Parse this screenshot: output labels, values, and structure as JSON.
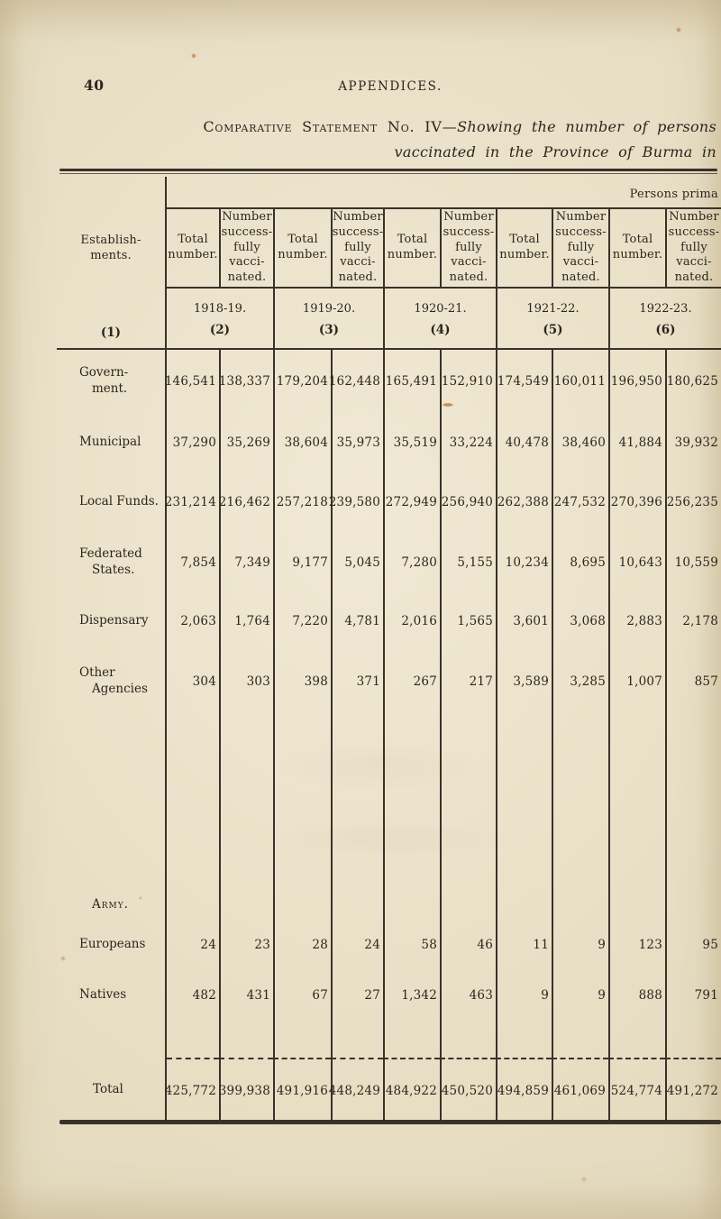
{
  "page": {
    "number": "40",
    "running_header": "APPENDICES.",
    "title": {
      "prefix": "Comparative Statement No. IV",
      "rest_line1": "—Showing the number of persons",
      "line2": "vaccinated in the Province of Burma in"
    }
  },
  "colors": {
    "paper": "#e8dfc5",
    "ink": "#2b261d"
  },
  "table": {
    "continuation_note": "Persons prima",
    "establishments_header": "Establish- ments.",
    "establishments_col_no": "(1)",
    "subheaders": {
      "total": "Total number.",
      "success": "Number success- fully vacci- nated."
    },
    "year_groups": [
      {
        "year": "1918-19.",
        "col_no": "(2)"
      },
      {
        "year": "1919-20.",
        "col_no": "(3)"
      },
      {
        "year": "1920-21.",
        "col_no": "(4)"
      },
      {
        "year": "1921-22.",
        "col_no": "(5)"
      },
      {
        "year": "1922-23.",
        "col_no": "(6)"
      }
    ],
    "establishment_rows": [
      {
        "key": "government",
        "label": "Govern- ment.",
        "values": [
          "146,541",
          "138,337",
          "179,204",
          "162,448",
          "165,491",
          "152,910",
          "174,549",
          "160,011",
          "196,950",
          "180,625"
        ]
      },
      {
        "key": "municipal",
        "label": "Municipal",
        "values": [
          "37,290",
          "35,269",
          "38,604",
          "35,973",
          "35,519",
          "33,224",
          "40,478",
          "38,460",
          "41,884",
          "39,932"
        ]
      },
      {
        "key": "local-funds",
        "label": "Local Funds.",
        "values": [
          "231,214",
          "216,462",
          "257,218",
          "239,580",
          "272,949",
          "256,940",
          "262,388",
          "247,532",
          "270,396",
          "256,235"
        ]
      },
      {
        "key": "federated-states",
        "label": "Federated States.",
        "values": [
          "7,854",
          "7,349",
          "9,177",
          "5,045",
          "7,280",
          "5,155",
          "10,234",
          "8,695",
          "10,643",
          "10,559"
        ]
      },
      {
        "key": "dispensary",
        "label": "Dispensary",
        "values": [
          "2,063",
          "1,764",
          "7,220",
          "4,781",
          "2,016",
          "1,565",
          "3,601",
          "3,068",
          "2,883",
          "2,178"
        ]
      },
      {
        "key": "other-agencies",
        "label": "Other Agencies",
        "values": [
          "304",
          "303",
          "398",
          "371",
          "267",
          "217",
          "3,589",
          "3,285",
          "1,007",
          "857"
        ]
      }
    ],
    "army_heading": "Army.",
    "army_rows": [
      {
        "key": "europeans",
        "label": "Europeans",
        "values": [
          "24",
          "23",
          "28",
          "24",
          "58",
          "46",
          "11",
          "9",
          "123",
          "95"
        ]
      },
      {
        "key": "natives",
        "label": "Natives",
        "values": [
          "482",
          "431",
          "67",
          "27",
          "1,342",
          "463",
          "9",
          "9",
          "888",
          "791"
        ]
      }
    ],
    "total_row": {
      "key": "total",
      "label": "Total",
      "values": [
        "425,772",
        "399,938",
        "491,916",
        "448,249",
        "484,922",
        "450,520",
        "494,859",
        "461,069",
        "524,774",
        "491,272"
      ]
    }
  }
}
